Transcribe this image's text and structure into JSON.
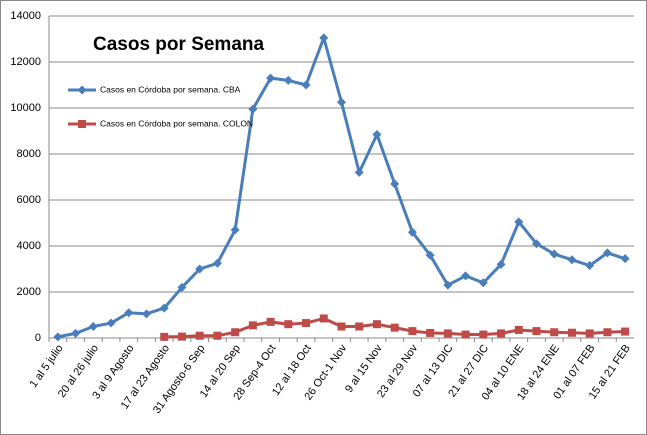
{
  "chart_data": {
    "type": "line",
    "title": "Casos por Semana",
    "categories": [
      "1 al 5 julio",
      null,
      "20 al 26 julio",
      null,
      "3 al 9 Agosto",
      null,
      "17 al 23 Agosto",
      null,
      "31 Agosto-6 Sep",
      null,
      "14 al 20 Sep",
      null,
      "28 Sep-4 Oct",
      null,
      "12 al 18 Oct",
      null,
      "26 Oct-1 Nov",
      null,
      "9 al 15 Nov",
      null,
      "23 al 29 Nov",
      null,
      "07 al 13 DIC",
      null,
      "21 al 27 DIC",
      null,
      "04 al 10 ENE",
      null,
      "18 al 24 ENE",
      null,
      "01 al 07 FEB",
      null,
      "15 al 21 FEB"
    ],
    "series": [
      {
        "name": "Casos en Córdoba por semana. CBA",
        "color": "#4a7ebb",
        "marker": "diamond",
        "values": [
          50,
          200,
          500,
          650,
          1100,
          1050,
          1300,
          2200,
          3000,
          3250,
          4700,
          9950,
          11300,
          11200,
          11000,
          13050,
          10250,
          7200,
          8850,
          6700,
          4600,
          3600,
          2300,
          2700,
          2400,
          3200,
          5050,
          4100,
          3650,
          3400,
          3150,
          3700,
          3450
        ]
      },
      {
        "name": "Casos en Córdoba por semana. COLON",
        "color": "#be4b48",
        "marker": "square",
        "values": [
          null,
          null,
          null,
          null,
          null,
          null,
          50,
          60,
          100,
          100,
          250,
          550,
          700,
          600,
          650,
          850,
          500,
          500,
          600,
          450,
          300,
          220,
          200,
          150,
          150,
          200,
          350,
          300,
          250,
          230,
          200,
          250,
          280
        ]
      }
    ],
    "ylim": [
      0,
      14000
    ],
    "yticks": [
      0,
      2000,
      4000,
      6000,
      8000,
      10000,
      12000,
      14000
    ],
    "grid": true
  }
}
